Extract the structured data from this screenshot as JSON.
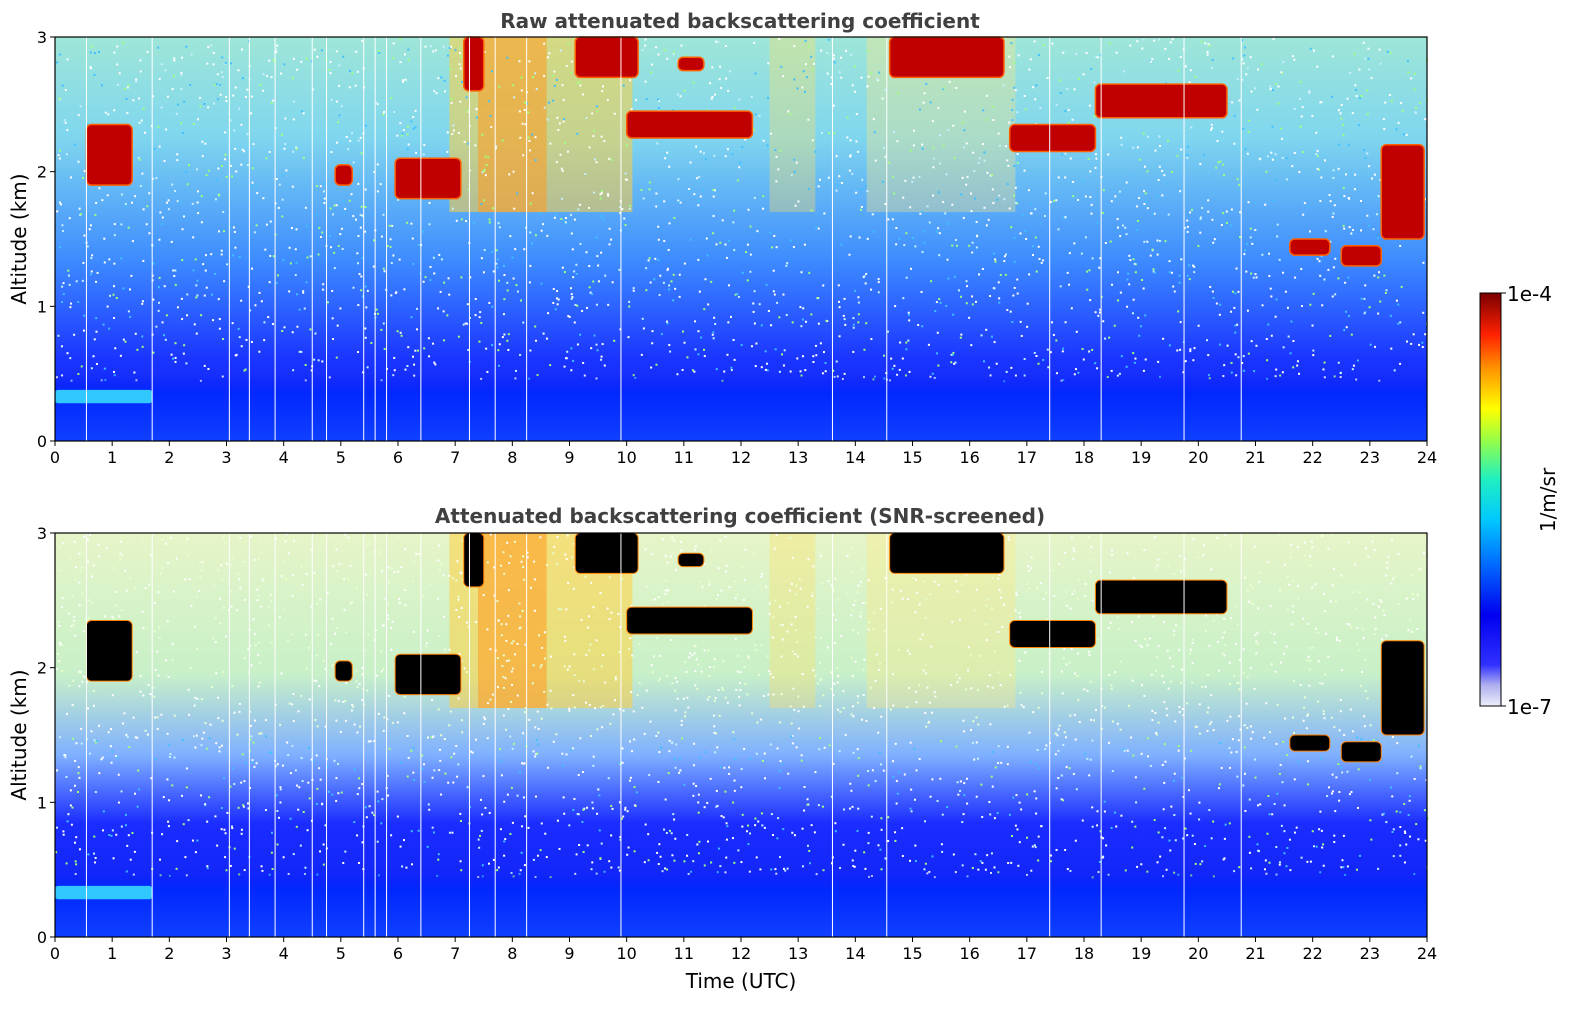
{
  "chart_data": [
    {
      "type": "heatmap",
      "title": "Raw attenuated backscattering coefficient",
      "xlabel": "",
      "ylabel": "Altitude (km)",
      "xlim": [
        0,
        24
      ],
      "ylim": [
        0,
        3
      ],
      "xticks": [
        "0",
        "1",
        "2",
        "3",
        "4",
        "5",
        "6",
        "7",
        "8",
        "9",
        "10",
        "11",
        "12",
        "13",
        "14",
        "15",
        "16",
        "17",
        "18",
        "19",
        "20",
        "21",
        "22",
        "23",
        "24"
      ],
      "yticks": [
        "0",
        "1",
        "2",
        "3"
      ],
      "color_scale": "log",
      "features": [
        {
          "kind": "boundary_layer",
          "x": [
            0,
            24
          ],
          "y": [
            0,
            0.5
          ]
        },
        {
          "kind": "aerosol_layer",
          "x": [
            0,
            1.7
          ],
          "y": [
            0.28,
            0.38
          ]
        },
        {
          "kind": "cloud",
          "x": [
            0.55,
            1.35
          ],
          "y": [
            1.9,
            2.35
          ]
        },
        {
          "kind": "cloud",
          "x": [
            4.9,
            5.2
          ],
          "y": [
            1.9,
            2.05
          ]
        },
        {
          "kind": "cloud",
          "x": [
            5.95,
            7.1
          ],
          "y": [
            1.8,
            2.1
          ]
        },
        {
          "kind": "cloud",
          "x": [
            7.15,
            7.5
          ],
          "y": [
            2.6,
            3.0
          ]
        },
        {
          "kind": "cloud",
          "x": [
            9.1,
            10.2
          ],
          "y": [
            2.7,
            3.0
          ]
        },
        {
          "kind": "cloud",
          "x": [
            10.9,
            11.35
          ],
          "y": [
            2.75,
            2.85
          ]
        },
        {
          "kind": "cloud",
          "x": [
            10.0,
            12.2
          ],
          "y": [
            2.25,
            2.45
          ]
        },
        {
          "kind": "cloud",
          "x": [
            14.6,
            16.6
          ],
          "y": [
            2.7,
            3.0
          ]
        },
        {
          "kind": "cloud",
          "x": [
            16.7,
            18.2
          ],
          "y": [
            2.15,
            2.35
          ]
        },
        {
          "kind": "cloud",
          "x": [
            18.2,
            20.5
          ],
          "y": [
            2.4,
            2.65
          ]
        },
        {
          "kind": "cloud",
          "x": [
            21.6,
            22.3
          ],
          "y": [
            1.38,
            1.5
          ]
        },
        {
          "kind": "cloud",
          "x": [
            22.5,
            23.2
          ],
          "y": [
            1.3,
            1.45
          ]
        },
        {
          "kind": "cloud",
          "x": [
            23.2,
            23.95
          ],
          "y": [
            1.5,
            2.2
          ]
        }
      ]
    },
    {
      "type": "heatmap",
      "title": "Attenuated backscattering coefficient (SNR-screened)",
      "xlabel": "Time (UTC)",
      "ylabel": "Altitude (km)",
      "xlim": [
        0,
        24
      ],
      "ylim": [
        0,
        3
      ],
      "xticks": [
        "0",
        "1",
        "2",
        "3",
        "4",
        "5",
        "6",
        "7",
        "8",
        "9",
        "10",
        "11",
        "12",
        "13",
        "14",
        "15",
        "16",
        "17",
        "18",
        "19",
        "20",
        "21",
        "22",
        "23",
        "24"
      ],
      "yticks": [
        "0",
        "1",
        "2",
        "3"
      ],
      "color_scale": "log",
      "screened_color": "#000000"
    }
  ],
  "colorbar": {
    "max_label": "1e-4",
    "min_label": "1e-7",
    "unit": "1/m/sr",
    "colors": [
      "#e8e8f8",
      "#b8b8f0",
      "#4040ff",
      "#0000ff",
      "#0050ff",
      "#00a0ff",
      "#00e0e0",
      "#40ff90",
      "#b0ff30",
      "#ffff00",
      "#ffa000",
      "#ff4000",
      "#e00000",
      "#800000"
    ]
  }
}
